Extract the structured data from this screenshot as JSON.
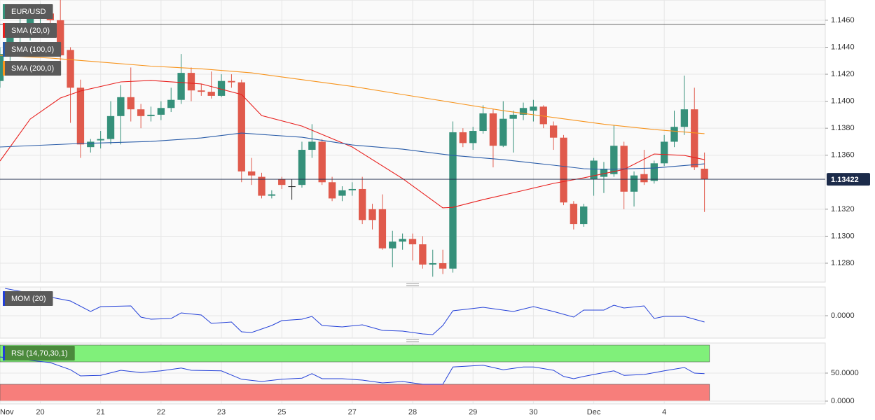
{
  "chart_data": [
    {
      "type": "candlestick",
      "title": "EUR/USD",
      "categories": [
        "Nov",
        null,
        null,
        null,
        "20",
        null,
        null,
        null,
        null,
        null,
        "21",
        null,
        null,
        null,
        null,
        null,
        "22",
        null,
        null,
        null,
        null,
        null,
        "23",
        null,
        null,
        null,
        null,
        null,
        "25",
        null,
        null,
        null,
        null,
        null,
        null,
        "27",
        null,
        null,
        null,
        null,
        null,
        "28",
        null,
        null,
        null,
        null,
        null,
        "29",
        null,
        null,
        null,
        null,
        null,
        "30",
        null,
        null,
        null,
        null,
        null,
        "Dec",
        null,
        null,
        null,
        null,
        null,
        null,
        "4",
        null,
        null,
        null,
        null
      ],
      "open": [
        1.1415,
        1.1435,
        1.145,
        1.1455,
        1.1462,
        1.1465,
        1.146,
        1.1438,
        1.141,
        1.1366,
        1.1371,
        1.1372,
        1.1389,
        1.1403,
        1.1394,
        1.1389,
        1.139,
        1.1395,
        1.1401,
        1.1421,
        1.1408,
        1.1407,
        1.1404,
        1.1415,
        1.1414,
        1.1348,
        1.1344,
        1.133,
        1.1342,
        1.1337,
        1.1338,
        1.1364,
        1.137,
        1.134,
        1.133,
        1.1334,
        1.1335,
        1.132,
        1.132,
        1.1291,
        1.1296,
        1.1298,
        1.1294,
        1.1279,
        1.128,
        1.1276,
        1.1377,
        1.1369,
        1.1378,
        1.1391,
        1.1367,
        1.1387,
        1.139,
        1.1393,
        1.1396,
        1.1382,
        1.1373,
        1.1324,
        1.1309,
        1.1342,
        1.1344,
        1.1346,
        1.1367,
        1.1333,
        1.1346,
        1.1341,
        1.1354,
        1.137,
        1.1381,
        1.1394,
        1.135
      ],
      "high": [
        1.144,
        1.1455,
        1.1462,
        1.1468,
        1.1472,
        1.147,
        1.1475,
        1.144,
        1.1416,
        1.1372,
        1.1378,
        1.14,
        1.1412,
        1.1425,
        1.1398,
        1.1396,
        1.14,
        1.141,
        1.1435,
        1.1425,
        1.1413,
        1.1422,
        1.142,
        1.142,
        1.1416,
        1.1358,
        1.1347,
        1.1334,
        1.1344,
        1.1342,
        1.137,
        1.1383,
        1.1372,
        1.1344,
        1.1337,
        1.134,
        1.1344,
        1.1324,
        1.1331,
        1.1304,
        1.1302,
        1.1302,
        1.13,
        1.129,
        1.129,
        1.1385,
        1.138,
        1.1381,
        1.1397,
        1.1394,
        1.14,
        1.1393,
        1.1399,
        1.1401,
        1.1397,
        1.1385,
        1.1375,
        1.1326,
        1.1324,
        1.1358,
        1.1355,
        1.1382,
        1.137,
        1.1348,
        1.1364,
        1.1356,
        1.1375,
        1.1393,
        1.1419,
        1.141,
        1.1362
      ],
      "low": [
        1.141,
        1.143,
        1.144,
        1.1445,
        1.145,
        1.1455,
        1.143,
        1.1384,
        1.1358,
        1.1362,
        1.1365,
        1.1368,
        1.1368,
        1.1385,
        1.138,
        1.1385,
        1.1386,
        1.1392,
        1.1398,
        1.14,
        1.1404,
        1.1402,
        1.1403,
        1.141,
        1.134,
        1.1338,
        1.1328,
        1.1328,
        1.1335,
        1.1327,
        1.1336,
        1.1358,
        1.1338,
        1.1326,
        1.1326,
        1.133,
        1.1309,
        1.1305,
        1.129,
        1.1277,
        1.129,
        1.1282,
        1.1276,
        1.127,
        1.1272,
        1.1273,
        1.1366,
        1.1364,
        1.1376,
        1.1351,
        1.1366,
        1.1362,
        1.1386,
        1.1385,
        1.138,
        1.1364,
        1.1323,
        1.1305,
        1.1307,
        1.133,
        1.1332,
        1.1344,
        1.132,
        1.1322,
        1.1338,
        1.1339,
        1.1352,
        1.1366,
        1.1375,
        1.1349,
        1.1318
      ],
      "close": [
        1.1435,
        1.145,
        1.1455,
        1.1462,
        1.1465,
        1.146,
        1.1434,
        1.141,
        1.1368,
        1.137,
        1.1372,
        1.1389,
        1.1403,
        1.1394,
        1.1389,
        1.139,
        1.1395,
        1.1401,
        1.1421,
        1.1408,
        1.1407,
        1.1404,
        1.1415,
        1.1414,
        1.1348,
        1.1345,
        1.133,
        1.1331,
        1.1338,
        1.1337,
        1.1364,
        1.137,
        1.134,
        1.1328,
        1.1334,
        1.1335,
        1.1312,
        1.1312,
        1.1291,
        1.1296,
        1.1298,
        1.1294,
        1.1279,
        1.128,
        1.1276,
        1.1377,
        1.1369,
        1.1378,
        1.1391,
        1.1367,
        1.1387,
        1.139,
        1.1395,
        1.1396,
        1.1383,
        1.1373,
        1.1325,
        1.1309,
        1.1322,
        1.1356,
        1.135,
        1.1367,
        1.1333,
        1.1345,
        1.134,
        1.1354,
        1.137,
        1.1381,
        1.1394,
        1.1351,
        1.13422
      ],
      "up_color": "#35907a",
      "down_color": "#e05a4c",
      "doji_color": "#222222",
      "series": [
        {
          "name": "SMA (20,0)",
          "color": "#e8201e",
          "x": [
            0,
            3,
            6,
            8,
            12,
            15,
            20,
            24,
            26,
            30,
            35,
            40,
            44,
            45,
            48,
            52,
            55,
            58,
            62,
            65,
            68,
            70
          ],
          "values": [
            1.13557,
            1.13868,
            1.14024,
            1.14076,
            1.14143,
            1.14154,
            1.14128,
            1.1405,
            1.13894,
            1.13816,
            1.13661,
            1.13427,
            1.1321,
            1.13214,
            1.13271,
            1.13339,
            1.13391,
            1.13432,
            1.13495,
            1.13609,
            1.13598,
            1.13567
          ]
        },
        {
          "name": "SMA (100,0)",
          "color": "#2a5ca8",
          "x": [
            0,
            8,
            15,
            20,
            24,
            30,
            35,
            40,
            45,
            50,
            55,
            58,
            60,
            65,
            70
          ],
          "values": [
            1.13661,
            1.13687,
            1.13702,
            1.13728,
            1.13764,
            1.13733,
            1.13676,
            1.13645,
            1.13598,
            1.13567,
            1.13526,
            1.135,
            1.13495,
            1.13505,
            1.13536
          ]
        },
        {
          "name": "SMA (200,0)",
          "color": "#f7941d",
          "x": [
            0,
            5,
            10,
            15,
            20,
            25,
            30,
            35,
            40,
            45,
            50,
            55,
            60,
            65,
            70
          ],
          "values": [
            1.1434,
            1.1432,
            1.1429,
            1.1426,
            1.1424,
            1.1421,
            1.1416,
            1.1411,
            1.1405,
            1.1399,
            1.1393,
            1.1388,
            1.1383,
            1.1379,
            1.1376
          ]
        }
      ],
      "xlim": [
        0,
        82
      ],
      "ylim": [
        1.1266,
        1.1475
      ],
      "yticks": [
        {
          "value": 1.146,
          "label": "1.1460"
        },
        {
          "value": 1.144,
          "label": "1.1440"
        },
        {
          "value": 1.142,
          "label": "1.1420"
        },
        {
          "value": 1.14,
          "label": "1.1400"
        },
        {
          "value": 1.138,
          "label": "1.1380"
        },
        {
          "value": 1.136,
          "label": "1.1360"
        },
        {
          "value": 1.132,
          "label": "1.1320"
        },
        {
          "value": 1.13,
          "label": "1.1300"
        },
        {
          "value": 1.128,
          "label": "1.1280"
        }
      ],
      "reference_line": 1.1457,
      "last_price": 1.13422,
      "grid": true
    },
    {
      "type": "line",
      "title": "MOM (20)",
      "color": "#2340d8",
      "x": [
        0.5,
        7,
        9,
        10,
        13,
        14,
        15,
        17,
        18,
        20,
        21,
        23,
        24,
        25,
        27,
        28,
        30,
        31,
        32,
        34,
        36,
        38,
        40,
        42,
        43,
        44,
        45,
        48,
        51,
        53,
        55,
        57,
        58,
        60,
        61,
        62,
        64,
        65,
        66,
        68,
        70
      ],
      "values": [
        0.0039,
        0.0021,
        0.0006,
        0.0013,
        0.0014,
        -0.0002,
        -0.0005,
        -0.0004,
        0.0004,
        0.0001,
        -0.0011,
        -0.0009,
        -0.0023,
        -0.0024,
        -0.0014,
        -0.0007,
        -0.0005,
        -0.0001,
        -0.0014,
        -0.0016,
        -0.0013,
        -0.0021,
        -0.0022,
        -0.0026,
        -0.0027,
        -0.0014,
        0.0007,
        0.0012,
        0.0006,
        0.0013,
        0.0006,
        -0.0002,
        0.0008,
        0.0008,
        0.0015,
        0.0011,
        0.0014,
        -0.0004,
        -0.0001,
        -0.0001,
        -0.0009
      ],
      "ylim": [
        -0.0032,
        0.0041
      ],
      "yticks": [
        {
          "value": 0,
          "label": "0.0000"
        }
      ]
    },
    {
      "type": "line",
      "title": "RSI (14,70,30,1)",
      "color": "#2340d8",
      "x": [
        0,
        5,
        7,
        8,
        10,
        12,
        14,
        16,
        18,
        19,
        22,
        24,
        26,
        28,
        30,
        31,
        32,
        34,
        36,
        38,
        40,
        42,
        44,
        45,
        48,
        50,
        52,
        53,
        55,
        56,
        57,
        58,
        60,
        61,
        62,
        64,
        66,
        68,
        69,
        70
      ],
      "values": [
        78.75,
        68.75,
        56,
        45,
        46,
        55,
        51,
        54,
        59,
        55,
        54,
        39,
        35,
        39,
        41,
        49,
        40,
        40,
        37.5,
        32.5,
        35,
        30,
        30,
        61,
        64,
        56,
        61,
        61,
        55,
        44,
        40,
        44,
        51,
        54,
        46,
        47.5,
        54,
        60,
        50,
        49
      ],
      "bands": [
        {
          "from": 70,
          "to": 100,
          "color": "#80f07a"
        },
        {
          "from": 0,
          "to": 30,
          "color": "#f77e7b"
        }
      ],
      "ylim": [
        -5,
        103.75
      ],
      "yticks": [
        {
          "value": 50,
          "label": "50.0000"
        },
        {
          "value": 0,
          "label": "0.0000"
        }
      ]
    }
  ]
}
